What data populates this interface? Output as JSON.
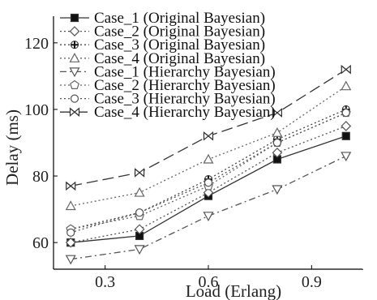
{
  "chart_data": {
    "type": "line",
    "xlabel": "Load (Erlang)",
    "ylabel": "Delay (ms)",
    "xlim": [
      0.15,
      1.05
    ],
    "ylim": [
      52,
      128
    ],
    "xticks": [
      0.3,
      0.6,
      0.9
    ],
    "xtick_labels": [
      "0.3",
      "0.6",
      "0.9"
    ],
    "yticks": [
      60,
      80,
      100,
      120
    ],
    "ytick_labels": [
      "60",
      "80",
      "100",
      "120"
    ],
    "grid": false,
    "legend_position": "top-left",
    "x": [
      0.2,
      0.4,
      0.6,
      0.8,
      1.0
    ],
    "series": [
      {
        "name": "Case_1 (Original Bayesian)",
        "values": [
          60,
          62,
          74,
          85,
          92
        ],
        "marker": "square-filled",
        "dash": "solid",
        "color": "#333333"
      },
      {
        "name": "Case_2 (Original Bayesian)",
        "values": [
          60,
          64,
          75,
          87,
          95
        ],
        "marker": "diamond",
        "dash": "dotted",
        "color": "#555555"
      },
      {
        "name": "Case_3 (Original Bayesian)",
        "values": [
          64,
          69,
          79,
          91,
          100
        ],
        "marker": "plus-filled",
        "dash": "dotted",
        "color": "#444444"
      },
      {
        "name": "Case_4 (Original Bayesian)",
        "values": [
          71,
          75,
          85,
          93,
          107
        ],
        "marker": "triangle-up",
        "dash": "dotted",
        "color": "#666666"
      },
      {
        "name": "Case_1 (Hierarchy Bayesian)",
        "values": [
          55,
          58,
          68,
          76,
          86
        ],
        "marker": "triangle-down",
        "dash": "dashdot",
        "color": "#555555"
      },
      {
        "name": "Case_2 (Hierarchy Bayesian)",
        "values": [
          64,
          68,
          77,
          90,
          99
        ],
        "marker": "pentagon",
        "dash": "dotted",
        "color": "#666666"
      },
      {
        "name": "Case_3 (Hierarchy Bayesian)",
        "values": [
          63,
          69,
          78,
          90,
          99
        ],
        "marker": "circle",
        "dash": "dotted",
        "color": "#555555"
      },
      {
        "name": "Case_4 (Hierarchy Bayesian)",
        "values": [
          77,
          81,
          92,
          99,
          112
        ],
        "marker": "bowtie",
        "dash": "longdash",
        "color": "#333333"
      }
    ]
  }
}
